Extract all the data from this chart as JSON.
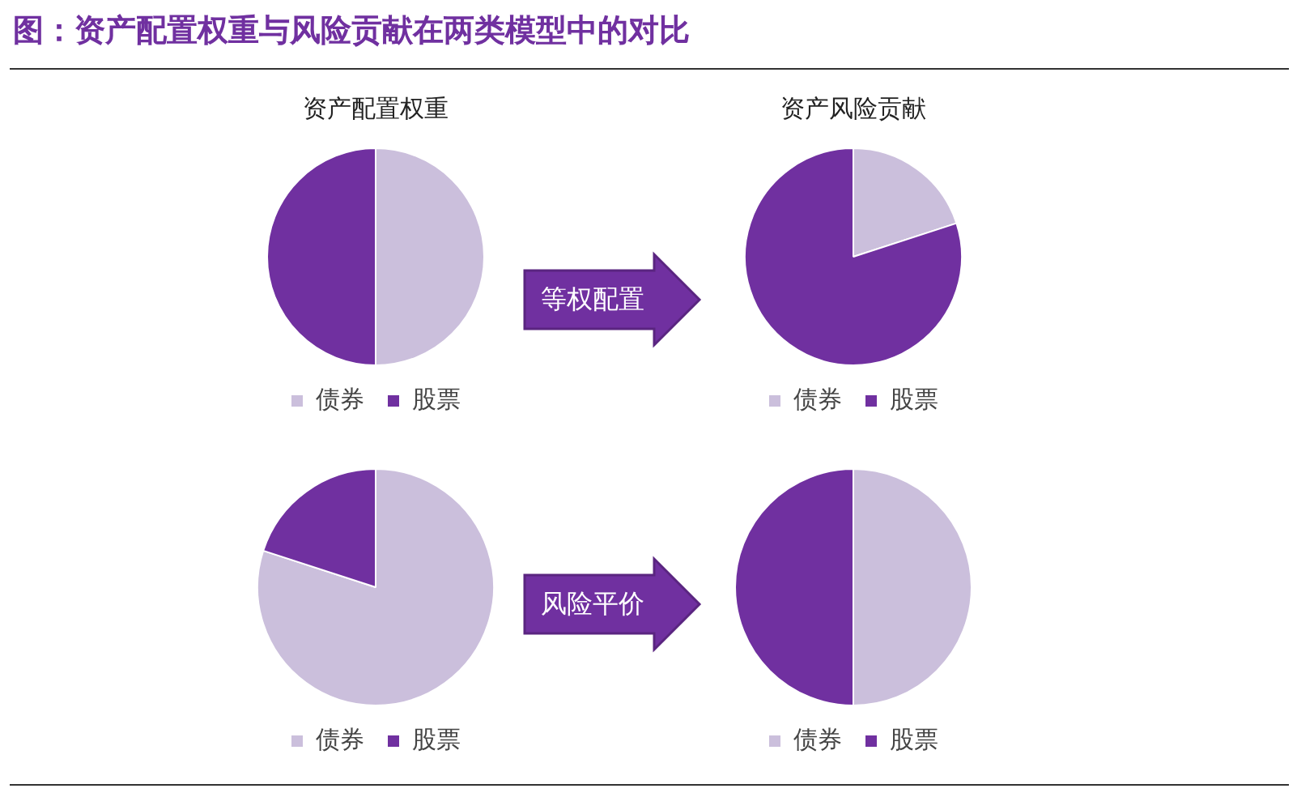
{
  "chart_data": [
    {
      "type": "pie",
      "title": "图：资产配置权重与风险贡献在两类模型中的对比",
      "subtitle": "资产配置权重",
      "categories": [
        "债券",
        "股票"
      ],
      "values": [
        50,
        50
      ],
      "colors": [
        "#cbbfdc",
        "#7030a0"
      ],
      "legend": "bottom",
      "annotations": [
        "等权配置"
      ]
    },
    {
      "type": "pie",
      "title": "资产风险贡献",
      "categories": [
        "债券",
        "股票"
      ],
      "values": [
        20,
        80
      ],
      "colors": [
        "#cbbfdc",
        "#7030a0"
      ],
      "legend": "bottom"
    },
    {
      "type": "pie",
      "categories": [
        "债券",
        "股票"
      ],
      "values": [
        80,
        20
      ],
      "colors": [
        "#cbbfdc",
        "#7030a0"
      ],
      "legend": "bottom",
      "annotations": [
        "风险平价"
      ]
    },
    {
      "type": "pie",
      "categories": [
        "债券",
        "股票"
      ],
      "values": [
        50,
        50
      ],
      "colors": [
        "#cbbfdc",
        "#7030a0"
      ],
      "legend": "bottom"
    }
  ]
}
